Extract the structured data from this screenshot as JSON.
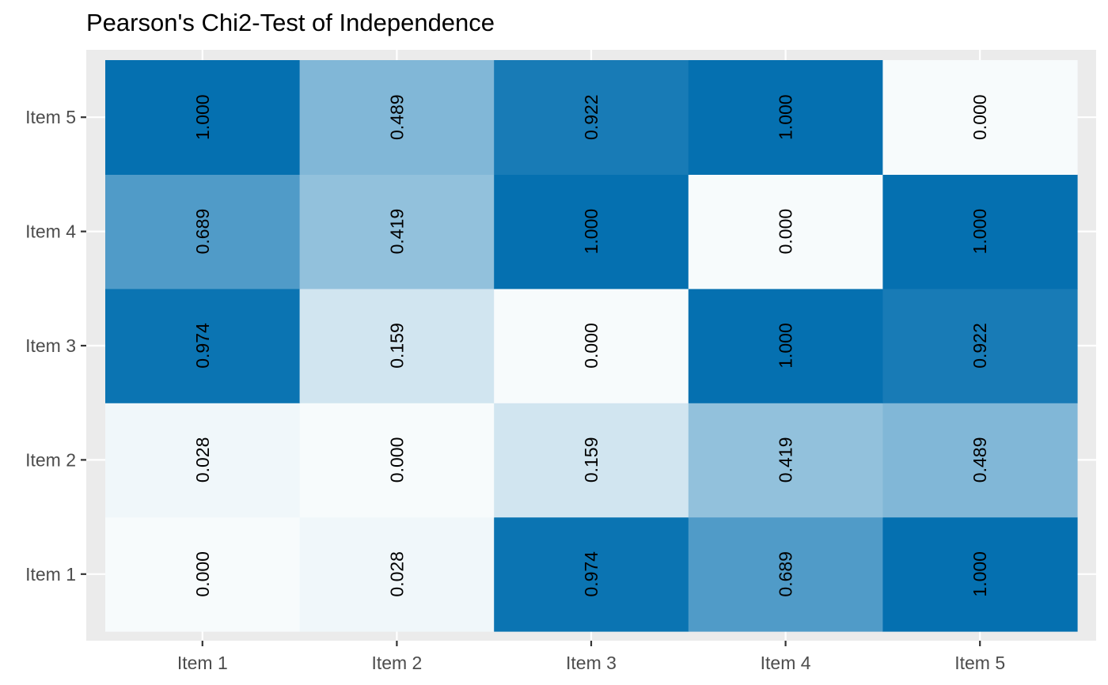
{
  "chart_data": {
    "type": "heatmap",
    "title": "Pearson's Chi2-Test of Independence",
    "xlabel": "",
    "ylabel": "",
    "x_categories": [
      "Item 1",
      "Item 2",
      "Item 3",
      "Item 4",
      "Item 5"
    ],
    "y_categories": [
      "Item 1",
      "Item 2",
      "Item 3",
      "Item 4",
      "Item 5"
    ],
    "values": [
      [
        0.0,
        0.028,
        0.974,
        0.689,
        1.0
      ],
      [
        0.028,
        0.0,
        0.159,
        0.419,
        0.489
      ],
      [
        0.974,
        0.159,
        0.0,
        1.0,
        0.922
      ],
      [
        0.689,
        0.419,
        1.0,
        0.0,
        1.0
      ],
      [
        1.0,
        0.489,
        0.922,
        1.0,
        0.0
      ]
    ],
    "value_labels": [
      [
        "0.000",
        "0.028",
        "0.974",
        "0.689",
        "1.000"
      ],
      [
        "0.028",
        "0.000",
        "0.159",
        "0.419",
        "0.489"
      ],
      [
        "0.974",
        "0.159",
        "0.000",
        "1.000",
        "0.922"
      ],
      [
        "0.689",
        "0.419",
        "1.000",
        "0.000",
        "1.000"
      ],
      [
        "1.000",
        "0.489",
        "0.922",
        "1.000",
        "0.000"
      ]
    ],
    "color_scale": {
      "low": "#f7fbfc",
      "high": "#0570b0"
    },
    "panel_background": "#ebebeb",
    "grid": true,
    "legend": "none"
  }
}
